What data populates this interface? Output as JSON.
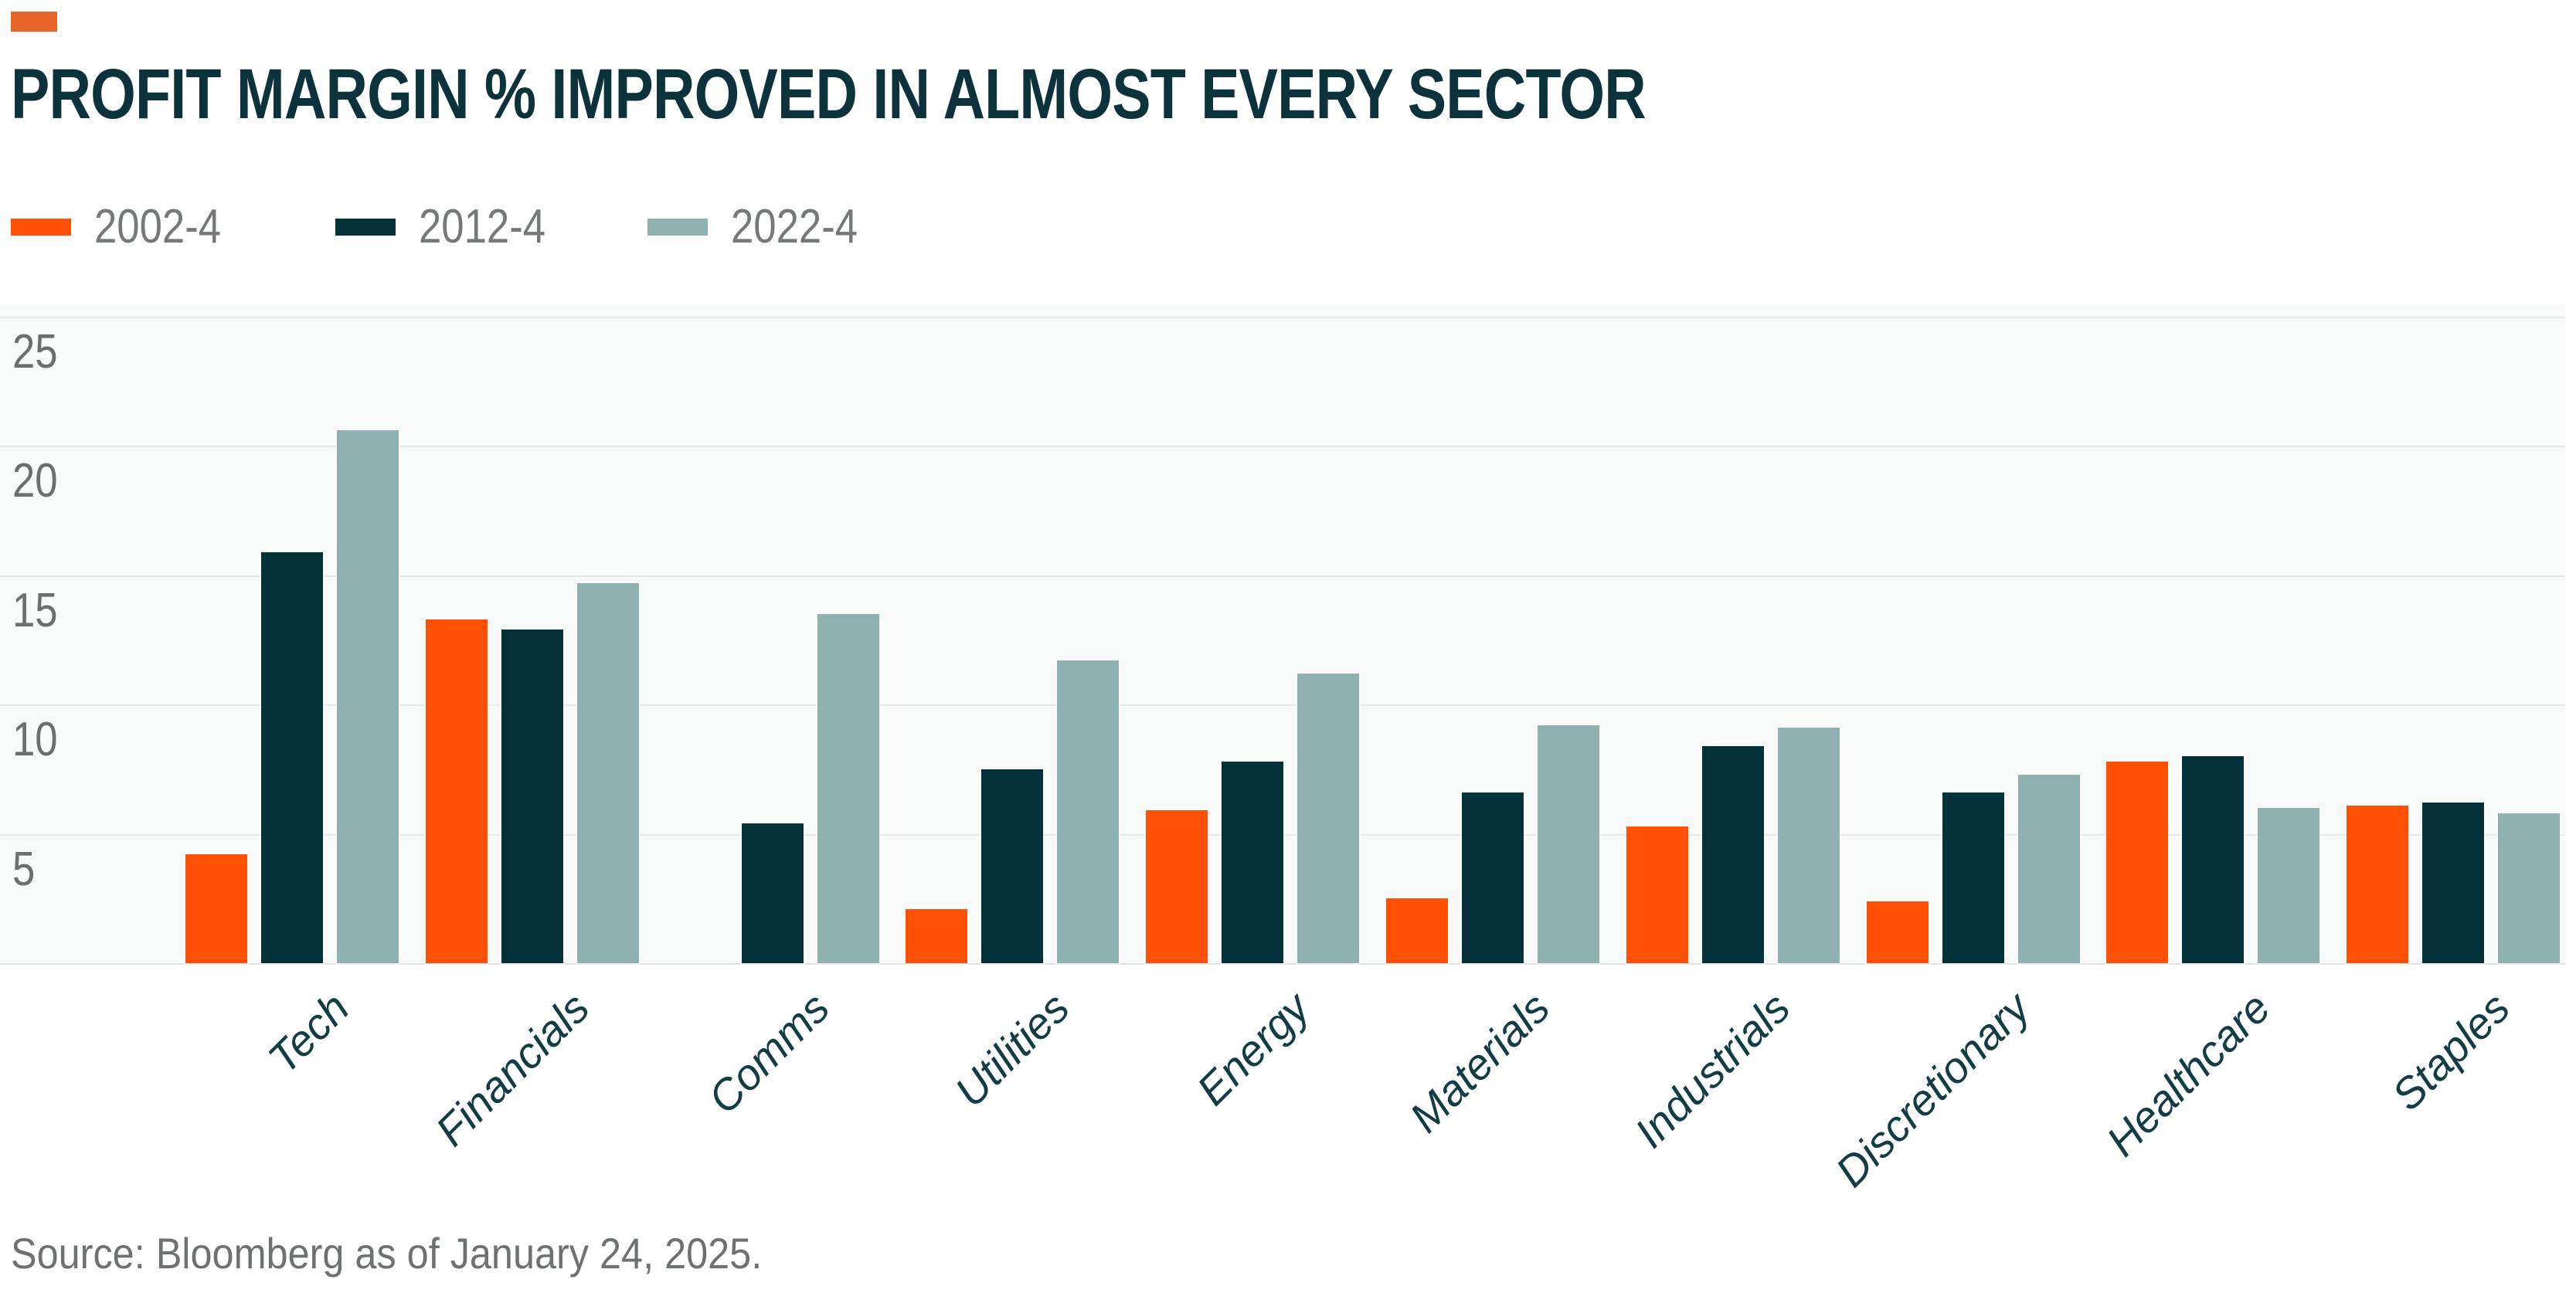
{
  "marker_color": "#e8662a",
  "title": "PROFIT MARGIN % IMPROVED IN ALMOST EVERY SECTOR",
  "source": "Source: Bloomberg as of January 24, 2025.",
  "palette": {
    "title_color": "#0c323c",
    "axis_label_color": "#123c46",
    "tick_color": "#6b6f6d",
    "legend_text_color": "#757977",
    "plot_background": "#f7faf8",
    "gridline_color": "#e5e9e7"
  },
  "chart_data": {
    "type": "bar",
    "title": "PROFIT MARGIN % IMPROVED IN ALMOST EVERY SECTOR",
    "categories": [
      "Tech",
      "Financials",
      "Comms",
      "Utilities",
      "Energy",
      "Materials",
      "Industrials",
      "Discretionary",
      "Healthcare",
      "Staples"
    ],
    "series": [
      {
        "name": "2002-4",
        "color": "#ff5106",
        "values": [
          4.2,
          13.3,
          null,
          2.1,
          5.9,
          2.5,
          5.3,
          2.4,
          7.8,
          6.1
        ]
      },
      {
        "name": "2012-4",
        "color": "#02313a",
        "values": [
          15.9,
          12.9,
          5.4,
          7.5,
          7.8,
          6.6,
          8.4,
          6.6,
          8.0,
          6.2
        ]
      },
      {
        "name": "2022-4",
        "color": "#8fb2b0",
        "values": [
          20.6,
          14.7,
          13.5,
          11.7,
          11.2,
          9.2,
          9.1,
          7.3,
          6.0,
          5.8
        ]
      }
    ],
    "ylabel": "",
    "xlabel": "",
    "ylim": [
      0,
      25
    ],
    "yticks": [
      5,
      10,
      15,
      20,
      25
    ],
    "grid": true,
    "legend_position": "top-left"
  }
}
